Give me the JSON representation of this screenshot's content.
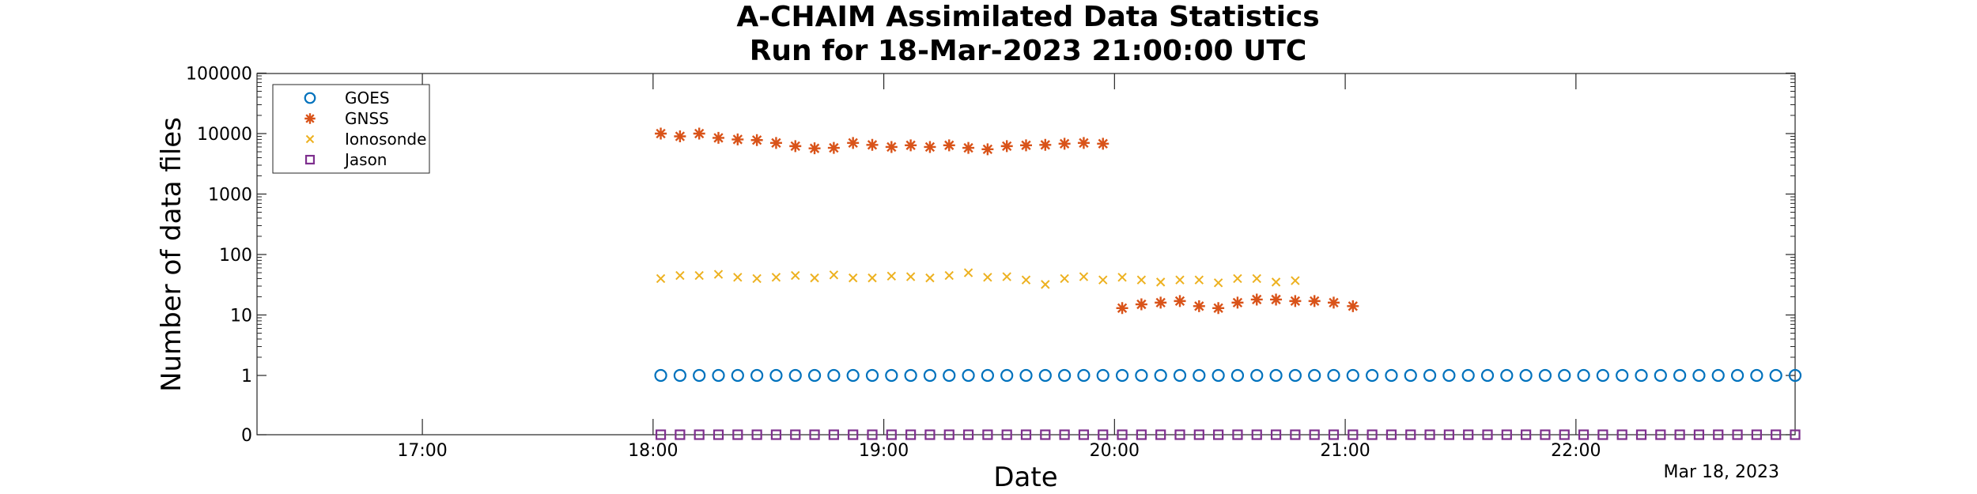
{
  "chart_data": {
    "type": "scatter",
    "title": [
      "A-CHAIM Assimilated Data Statistics",
      "Run for 18-Mar-2023 21:00:00 UTC"
    ],
    "xlabel": "Date",
    "ylabel": "Number of data files",
    "x_date_label": "Mar 18, 2023",
    "xlim": [
      "16:17",
      "22:57"
    ],
    "x_ticks": [
      "17:00",
      "18:00",
      "19:00",
      "20:00",
      "21:00",
      "22:00"
    ],
    "y_scale": "log",
    "y_zero_row": true,
    "y_ticks": [
      "0",
      "1",
      "10",
      "100",
      "1000",
      "10000",
      "100000"
    ],
    "grid": false,
    "legend_position": "top-left",
    "series": [
      {
        "name": "GOES",
        "marker": "circle",
        "color": "#0072bd",
        "x": [
          "18:02",
          "18:07",
          "18:12",
          "18:17",
          "18:22",
          "18:27",
          "18:32",
          "18:37",
          "18:42",
          "18:47",
          "18:52",
          "18:57",
          "19:02",
          "19:07",
          "19:12",
          "19:17",
          "19:22",
          "19:27",
          "19:32",
          "19:37",
          "19:42",
          "19:47",
          "19:52",
          "19:57",
          "20:02",
          "20:07",
          "20:12",
          "20:17",
          "20:22",
          "20:27",
          "20:32",
          "20:37",
          "20:42",
          "20:47",
          "20:52",
          "20:57",
          "21:02",
          "21:07",
          "21:12",
          "21:17",
          "21:22",
          "21:27",
          "21:32",
          "21:37",
          "21:42",
          "21:47",
          "21:52",
          "21:57",
          "22:02",
          "22:07",
          "22:12",
          "22:17",
          "22:22",
          "22:27",
          "22:32",
          "22:37",
          "22:42",
          "22:47",
          "22:52",
          "22:57"
        ],
        "y": [
          1,
          1,
          1,
          1,
          1,
          1,
          1,
          1,
          1,
          1,
          1,
          1,
          1,
          1,
          1,
          1,
          1,
          1,
          1,
          1,
          1,
          1,
          1,
          1,
          1,
          1,
          1,
          1,
          1,
          1,
          1,
          1,
          1,
          1,
          1,
          1,
          1,
          1,
          1,
          1,
          1,
          1,
          1,
          1,
          1,
          1,
          1,
          1,
          1,
          1,
          1,
          1,
          1,
          1,
          1,
          1,
          1,
          1,
          1,
          1
        ]
      },
      {
        "name": "GNSS",
        "marker": "asterisk",
        "color": "#d95319",
        "x": [
          "18:02",
          "18:07",
          "18:12",
          "18:17",
          "18:22",
          "18:27",
          "18:32",
          "18:37",
          "18:42",
          "18:47",
          "18:52",
          "18:57",
          "19:02",
          "19:07",
          "19:12",
          "19:17",
          "19:22",
          "19:27",
          "19:32",
          "19:37",
          "19:42",
          "19:47",
          "19:52",
          "19:57",
          "20:02",
          "20:07",
          "20:12",
          "20:17",
          "20:22",
          "20:27",
          "20:32",
          "20:37",
          "20:42",
          "20:47",
          "20:52",
          "20:57",
          "21:02"
        ],
        "y": [
          10000,
          9000,
          10000,
          8500,
          8000,
          7800,
          7000,
          6200,
          5700,
          5800,
          7000,
          6500,
          6000,
          6400,
          6000,
          6400,
          5800,
          5500,
          6200,
          6400,
          6500,
          6800,
          7000,
          6800,
          13,
          15,
          16,
          17,
          14,
          13,
          16,
          18,
          18,
          17,
          17,
          16,
          14
        ]
      },
      {
        "name": "Ionosonde",
        "marker": "x",
        "color": "#edb120",
        "x": [
          "18:02",
          "18:07",
          "18:12",
          "18:17",
          "18:22",
          "18:27",
          "18:32",
          "18:37",
          "18:42",
          "18:47",
          "18:52",
          "18:57",
          "19:02",
          "19:07",
          "19:12",
          "19:17",
          "19:22",
          "19:27",
          "19:32",
          "19:37",
          "19:42",
          "19:47",
          "19:52",
          "19:57",
          "20:02",
          "20:07",
          "20:12",
          "20:17",
          "20:22",
          "20:27",
          "20:32",
          "20:37",
          "20:42",
          "20:47"
        ],
        "y": [
          40,
          45,
          45,
          47,
          42,
          40,
          42,
          45,
          41,
          46,
          41,
          41,
          44,
          43,
          41,
          45,
          50,
          42,
          43,
          38,
          32,
          40,
          43,
          38,
          42,
          38,
          35,
          38,
          38,
          34,
          40,
          40,
          35,
          37
        ]
      },
      {
        "name": "Jason",
        "marker": "square",
        "color": "#7e2f8e",
        "x": [
          "18:02",
          "18:07",
          "18:12",
          "18:17",
          "18:22",
          "18:27",
          "18:32",
          "18:37",
          "18:42",
          "18:47",
          "18:52",
          "18:57",
          "19:02",
          "19:07",
          "19:12",
          "19:17",
          "19:22",
          "19:27",
          "19:32",
          "19:37",
          "19:42",
          "19:47",
          "19:52",
          "19:57",
          "20:02",
          "20:07",
          "20:12",
          "20:17",
          "20:22",
          "20:27",
          "20:32",
          "20:37",
          "20:42",
          "20:47",
          "20:52",
          "20:57",
          "21:02",
          "21:07",
          "21:12",
          "21:17",
          "21:22",
          "21:27",
          "21:32",
          "21:37",
          "21:42",
          "21:47",
          "21:52",
          "21:57",
          "22:02",
          "22:07",
          "22:12",
          "22:17",
          "22:22",
          "22:27",
          "22:32",
          "22:37",
          "22:42",
          "22:47",
          "22:52",
          "22:57"
        ],
        "y": [
          0,
          0,
          0,
          0,
          0,
          0,
          0,
          0,
          0,
          0,
          0,
          0,
          0,
          0,
          0,
          0,
          0,
          0,
          0,
          0,
          0,
          0,
          0,
          0,
          0,
          0,
          0,
          0,
          0,
          0,
          0,
          0,
          0,
          0,
          0,
          0,
          0,
          0,
          0,
          0,
          0,
          0,
          0,
          0,
          0,
          0,
          0,
          0,
          0,
          0,
          0,
          0,
          0,
          0,
          0,
          0,
          0,
          0,
          0,
          0
        ]
      }
    ]
  }
}
